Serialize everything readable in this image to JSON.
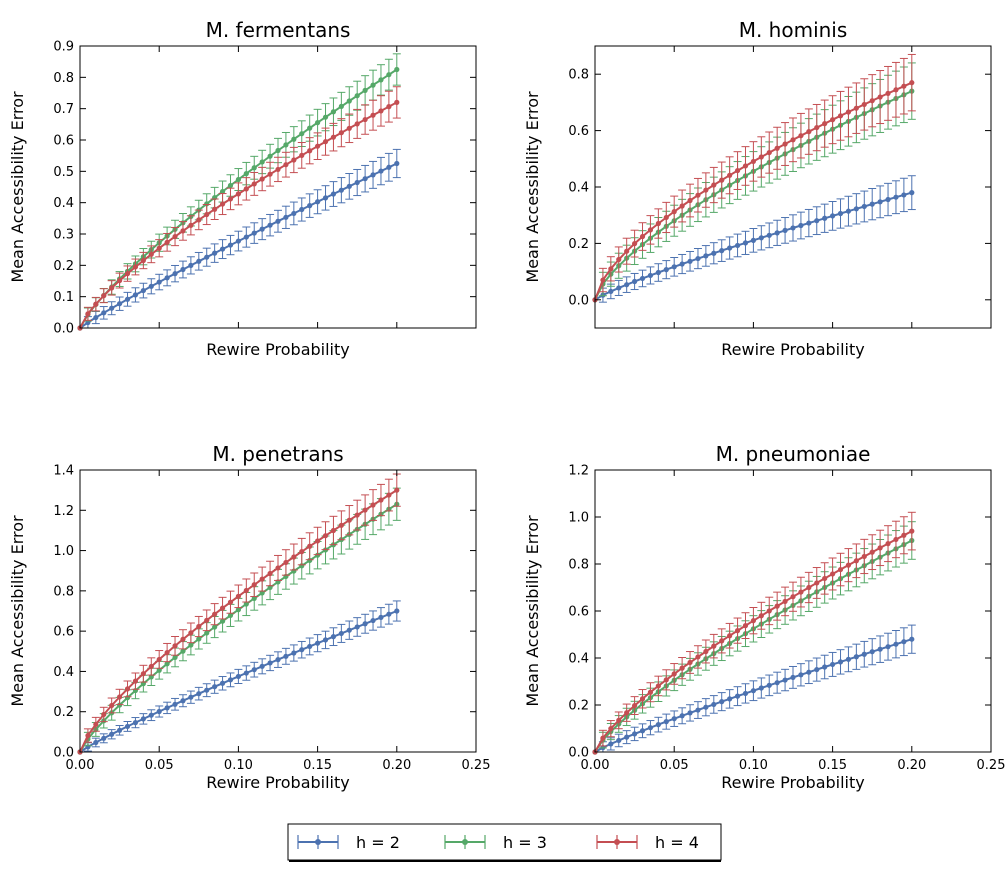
{
  "chart_data": [
    {
      "type": "line",
      "title": "M. fermentans",
      "xlabel": "Rewire Probability",
      "ylabel": "Mean Accessibility Error",
      "xlim": [
        0,
        0.25
      ],
      "ylim": [
        0,
        0.9
      ],
      "xticks": [],
      "yticks": [
        0.0,
        0.1,
        0.2,
        0.3,
        0.4,
        0.5,
        0.6,
        0.7,
        0.8,
        0.9
      ],
      "series": [
        {
          "name": "h = 2",
          "color": "#4c72b0",
          "y_end": 0.525,
          "err": 0.045,
          "shape": 0.92
        },
        {
          "name": "h = 3",
          "color": "#55a868",
          "y_end": 0.825,
          "err": 0.05,
          "shape": 0.8
        },
        {
          "name": "h = 4",
          "color": "#c44e52",
          "y_end": 0.72,
          "err": 0.05,
          "shape": 0.75
        }
      ]
    },
    {
      "type": "line",
      "title": "M. hominis",
      "xlabel": "Rewire Probability",
      "ylabel": "Mean Accessibility Error",
      "xlim": [
        0,
        0.25
      ],
      "ylim": [
        -0.1,
        0.9
      ],
      "xticks": [],
      "yticks": [
        0.0,
        0.2,
        0.4,
        0.6,
        0.8
      ],
      "series": [
        {
          "name": "h = 2",
          "color": "#4c72b0",
          "y_end": 0.38,
          "err": 0.06,
          "shape": 0.85
        },
        {
          "name": "h = 3",
          "color": "#55a868",
          "y_end": 0.74,
          "err": 0.1,
          "shape": 0.7
        },
        {
          "name": "h = 4",
          "color": "#c44e52",
          "y_end": 0.77,
          "err": 0.1,
          "shape": 0.65
        }
      ]
    },
    {
      "type": "line",
      "title": "M. penetrans",
      "xlabel": "Rewire Probability",
      "ylabel": "Mean Accessibility Error",
      "xlim": [
        0,
        0.25
      ],
      "ylim": [
        0,
        1.4
      ],
      "xticks": [
        "0.00",
        "0.05",
        "0.10",
        "0.15",
        "0.20",
        "0.25"
      ],
      "yticks": [
        0.0,
        0.2,
        0.4,
        0.6,
        0.8,
        1.0,
        1.2,
        1.4
      ],
      "series": [
        {
          "name": "h = 2",
          "color": "#4c72b0",
          "y_end": 0.7,
          "err": 0.05,
          "shape": 0.9
        },
        {
          "name": "h = 3",
          "color": "#55a868",
          "y_end": 1.23,
          "err": 0.08,
          "shape": 0.8
        },
        {
          "name": "h = 4",
          "color": "#c44e52",
          "y_end": 1.3,
          "err": 0.08,
          "shape": 0.75
        }
      ]
    },
    {
      "type": "line",
      "title": "M. pneumoniae",
      "xlabel": "Rewire Probability",
      "ylabel": "Mean Accessibility Error",
      "xlim": [
        0,
        0.25
      ],
      "ylim": [
        0,
        1.2
      ],
      "xticks": [
        "0.00",
        "0.05",
        "0.10",
        "0.15",
        "0.20",
        "0.25"
      ],
      "yticks": [
        0.0,
        0.2,
        0.4,
        0.6,
        0.8,
        1.0,
        1.2
      ],
      "series": [
        {
          "name": "h = 2",
          "color": "#4c72b0",
          "y_end": 0.48,
          "err": 0.06,
          "shape": 0.88
        },
        {
          "name": "h = 3",
          "color": "#55a868",
          "y_end": 0.9,
          "err": 0.08,
          "shape": 0.78
        },
        {
          "name": "h = 4",
          "color": "#c44e52",
          "y_end": 0.94,
          "err": 0.08,
          "shape": 0.75
        }
      ]
    }
  ],
  "legend": {
    "items": [
      {
        "label": "h = 2",
        "color": "#4c72b0"
      },
      {
        "label": "h = 3",
        "color": "#55a868"
      },
      {
        "label": "h = 4",
        "color": "#c44e52"
      }
    ]
  }
}
